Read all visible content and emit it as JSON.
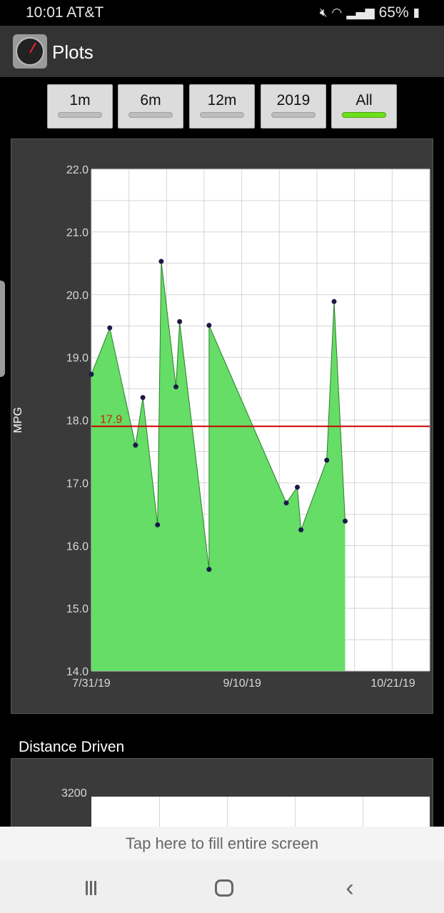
{
  "status_bar": {
    "time": "10:01",
    "carrier": "AT&T",
    "battery": "65%"
  },
  "app_bar": {
    "title": "Plots"
  },
  "range_buttons": [
    {
      "label": "1m",
      "active": false
    },
    {
      "label": "6m",
      "active": false
    },
    {
      "label": "12m",
      "active": false
    },
    {
      "label": "2019",
      "active": false
    },
    {
      "label": "All",
      "active": true
    }
  ],
  "chart_data": {
    "type": "area",
    "ylabel": "MPG",
    "xlabel": "",
    "ylim": [
      14.0,
      22.0
    ],
    "yticks": [
      "14.0",
      "15.0",
      "16.0",
      "17.0",
      "18.0",
      "19.0",
      "20.0",
      "21.0",
      "22.0"
    ],
    "xticks": [
      "7/31/19",
      "9/10/19",
      "10/21/19"
    ],
    "grid": true,
    "fill_color": "#66dd66",
    "average_line": {
      "value": 17.9,
      "label": "17.9",
      "color": "#cc0000"
    },
    "series": [
      {
        "points": [
          {
            "x": "7/31/19",
            "y": 18.73
          },
          {
            "x": "8/5/19",
            "y": 19.47
          },
          {
            "x": "8/12/19",
            "y": 17.6
          },
          {
            "x": "8/14/19",
            "y": 18.36
          },
          {
            "x": "8/18/19",
            "y": 16.33
          },
          {
            "x": "8/19/19",
            "y": 20.53
          },
          {
            "x": "8/23/19",
            "y": 18.53
          },
          {
            "x": "8/24/19",
            "y": 19.57
          },
          {
            "x": "9/1/19",
            "y": 15.62
          },
          {
            "x": "9/1/19",
            "y": 19.51
          },
          {
            "x": "9/22/19",
            "y": 16.68
          },
          {
            "x": "9/25/19",
            "y": 16.93
          },
          {
            "x": "9/26/19",
            "y": 16.25
          },
          {
            "x": "10/3/19",
            "y": 17.36
          },
          {
            "x": "10/5/19",
            "y": 19.89
          },
          {
            "x": "10/8/19",
            "y": 16.39
          }
        ]
      }
    ]
  },
  "distance_section": {
    "title": "Distance Driven",
    "top_tick": "3200"
  },
  "fill_banner": "Tap here to fill entire screen"
}
